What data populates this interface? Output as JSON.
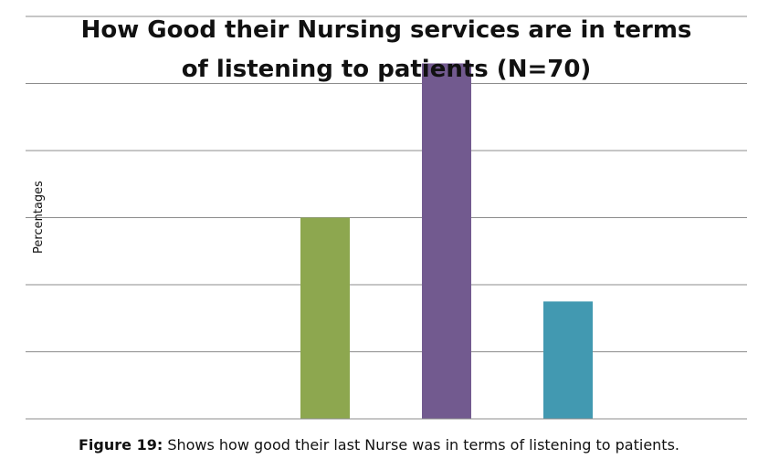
{
  "chart_data": {
    "type": "bar",
    "title_lines": [
      "How Good their Nursing services are in terms",
      "of listening to patients  (N=70)"
    ],
    "xlabel": "",
    "ylabel": "Percentages",
    "categories": [
      "",
      "",
      "",
      "",
      ""
    ],
    "values": [
      0,
      0,
      30,
      53,
      17.5
    ],
    "colors": [
      "#4f81bd",
      "#c0504d",
      "#8da74f",
      "#725a8f",
      "#4299b1"
    ],
    "ylim": [
      0,
      60
    ],
    "yticks": [
      0,
      10,
      20,
      30,
      40,
      50,
      60
    ],
    "grid": true,
    "legend": "none",
    "tick_labels_visible": false
  },
  "caption": {
    "label": "Figure 19:",
    "text": " Shows how good their last Nurse was in terms of listening to patients."
  }
}
